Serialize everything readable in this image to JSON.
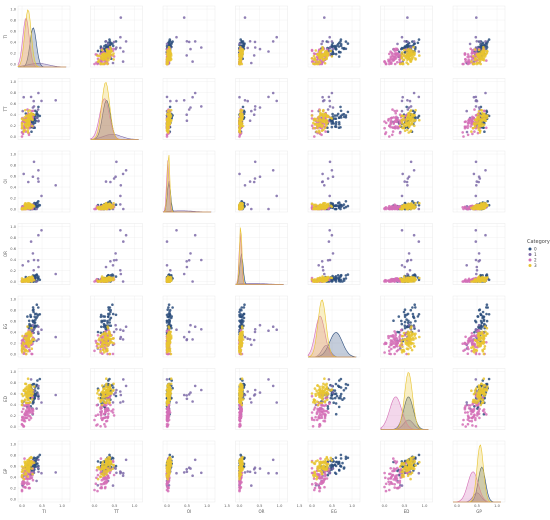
{
  "chart_data": {
    "type": "scatter",
    "subtype": "pairplot",
    "variables": [
      "TI",
      "TT",
      "OI",
      "OR",
      "EG",
      "ED",
      "GP"
    ],
    "diagonal": "kde",
    "axis_range": [
      0,
      1
    ],
    "ticks": {
      "TI": [
        "0.0",
        "0.5",
        "1.0"
      ],
      "TT": [
        "0.0",
        "0.5",
        "1.0"
      ],
      "OI": [
        "0.0",
        "0.5",
        "1.0",
        "1.5"
      ],
      "OR": [
        "0.0",
        "0.5",
        "1.0",
        "1.5"
      ],
      "EG": [
        "0.0",
        "0.5",
        "1.0"
      ],
      "ED": [
        "0.0",
        "0.5",
        "1.0"
      ],
      "GP": [
        "0.0",
        "0.5",
        "1.0"
      ]
    },
    "y_ticks": [
      "0.0",
      "0.2",
      "0.4",
      "0.6",
      "0.8",
      "1.0"
    ],
    "grid": true,
    "legend": {
      "title": "Category",
      "placement": "right",
      "entries": [
        "0",
        "1",
        "2",
        "3"
      ]
    },
    "series": [
      {
        "name": "0",
        "color": "#2c4d7c",
        "means": [
          0.28,
          0.3,
          0.05,
          0.05,
          0.6,
          0.6,
          0.62
        ],
        "sds": [
          0.08,
          0.1,
          0.04,
          0.04,
          0.16,
          0.12,
          0.09
        ],
        "points": 48
      },
      {
        "name": "1",
        "color": "#7d6aa8",
        "means": [
          0.4,
          0.45,
          0.35,
          0.35,
          0.35,
          0.6,
          0.5
        ],
        "sds": [
          0.25,
          0.22,
          0.3,
          0.3,
          0.1,
          0.12,
          0.1
        ],
        "points": 14
      },
      {
        "name": "2",
        "color": "#d46fb6",
        "means": [
          0.1,
          0.25,
          0.02,
          0.02,
          0.2,
          0.28,
          0.4
        ],
        "sds": [
          0.08,
          0.12,
          0.02,
          0.02,
          0.12,
          0.15,
          0.13
        ],
        "points": 60
      },
      {
        "name": "3",
        "color": "#e8c430",
        "means": [
          0.15,
          0.28,
          0.04,
          0.03,
          0.25,
          0.6,
          0.58
        ],
        "sds": [
          0.08,
          0.1,
          0.03,
          0.03,
          0.1,
          0.1,
          0.08
        ],
        "points": 70
      }
    ]
  }
}
